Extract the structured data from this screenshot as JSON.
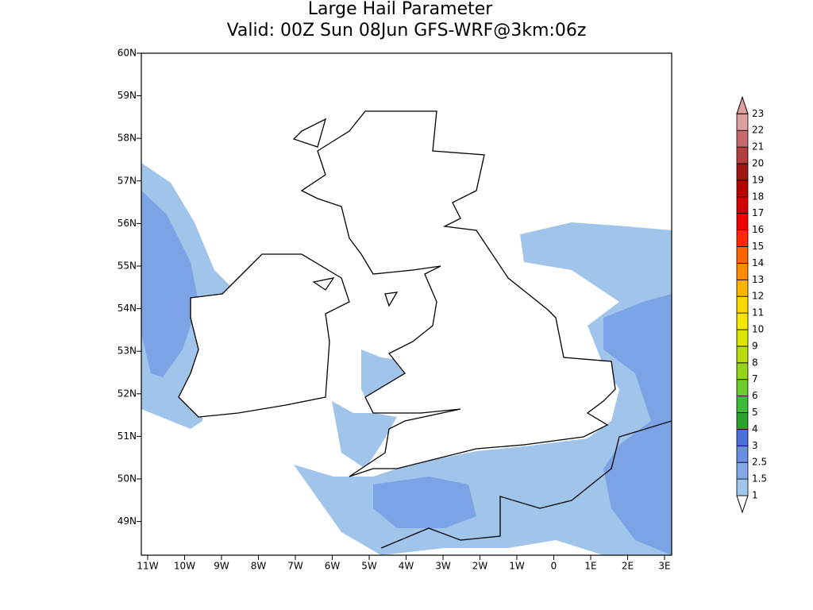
{
  "title": "Large Hail Parameter",
  "subtitle": "Valid: 00Z Sun 08Jun GFS-WRF@3km:06z",
  "lat_ticks": [
    "60N",
    "59N",
    "58N",
    "57N",
    "56N",
    "55N",
    "54N",
    "53N",
    "52N",
    "51N",
    "50N",
    "49N"
  ],
  "lon_ticks": [
    "11W",
    "10W",
    "9W",
    "8W",
    "7W",
    "6W",
    "5W",
    "4W",
    "3W",
    "2W",
    "1W",
    "0",
    "1E",
    "2E",
    "3E"
  ],
  "colorbar": {
    "levels": [
      1,
      1.5,
      2.5,
      3,
      4,
      5,
      6,
      7,
      8,
      9,
      10,
      11,
      12,
      13,
      14,
      15,
      16,
      17,
      18,
      19,
      20,
      21,
      22,
      23
    ],
    "colors": [
      "#ffffff",
      "#a0c4ea",
      "#82a8e8",
      "#6a8ee0",
      "#4f6fd8",
      "#2ea02e",
      "#3cba3c",
      "#6ccc2c",
      "#94d41c",
      "#b8dc0c",
      "#dce400",
      "#f4e800",
      "#ffd800",
      "#ffb400",
      "#ff8c00",
      "#ff6400",
      "#ff2800",
      "#f00000",
      "#d40000",
      "#b80000",
      "#a01414",
      "#b04040",
      "#c46c6c",
      "#dca0a0"
    ]
  }
}
